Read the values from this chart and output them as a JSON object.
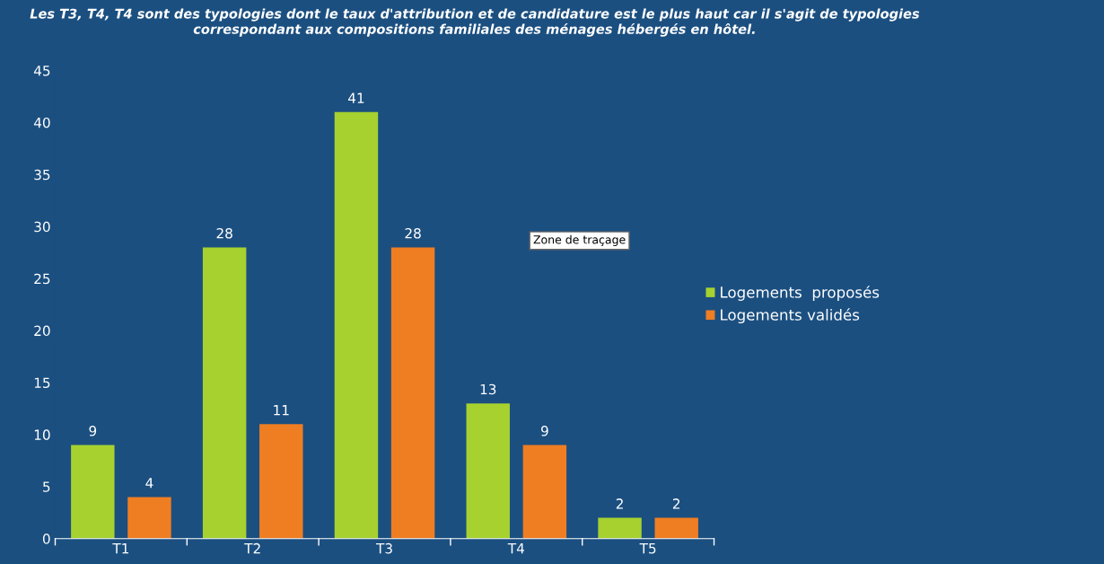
{
  "chart_data": {
    "type": "bar",
    "title": "Les T3, T4, T4 sont des typologies dont le taux d'attribution et de candidature est le plus haut car il s'agit de typologies correspondant aux compositions familiales des ménages hébergés en hôtel.",
    "categories": [
      "T1",
      "T2",
      "T3",
      "T4",
      "T5"
    ],
    "series": [
      {
        "name": "Logements  proposés",
        "color": "#a6d12f",
        "values": [
          9,
          28,
          41,
          13,
          2
        ]
      },
      {
        "name": "Logements validés",
        "color": "#ef7d22",
        "values": [
          4,
          11,
          28,
          9,
          2
        ]
      }
    ],
    "ylim": [
      0,
      45
    ],
    "yticks": [
      0,
      5,
      10,
      15,
      20,
      25,
      30,
      35,
      40,
      45
    ],
    "grid": false,
    "legend": "right",
    "data_labels": true,
    "annotations": [
      "Zone de traçage"
    ]
  }
}
